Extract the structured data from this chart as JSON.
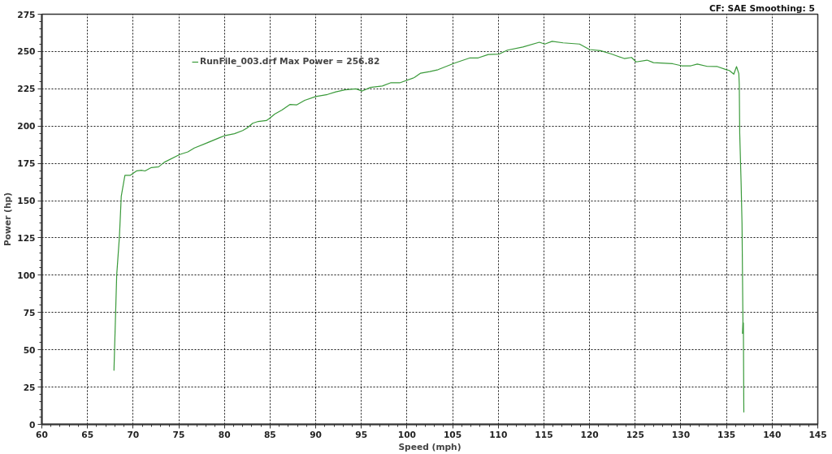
{
  "chart_data": {
    "type": "line",
    "xlabel": "Speed (mph)",
    "ylabel": "Power (hp)",
    "annotations": [
      "CF: SAE  Smoothing: 5"
    ],
    "xlim": [
      60,
      145
    ],
    "ylim": [
      0,
      275
    ],
    "xticks": [
      60,
      65,
      70,
      75,
      80,
      85,
      90,
      95,
      100,
      105,
      110,
      115,
      120,
      125,
      130,
      135,
      140,
      145
    ],
    "yticks": [
      0,
      25,
      50,
      75,
      100,
      125,
      150,
      175,
      200,
      225,
      250,
      275
    ],
    "grid": true,
    "legend": "top left",
    "series": [
      {
        "name": "RunFile_003.drf Max Power = 256.82",
        "color": "#3a9a3a",
        "x": [
          67.9,
          68.2,
          68.5,
          68.7,
          69.1,
          69.7,
          70.4,
          70.9,
          71.3,
          72.0,
          72.8,
          73.4,
          75.1,
          76.0,
          76.7,
          78.0,
          79.5,
          80.1,
          81.1,
          82.0,
          82.5,
          83.1,
          83.7,
          84.6,
          85.0,
          85.5,
          86.3,
          87.2,
          87.9,
          88.8,
          90.0,
          91.3,
          92.2,
          93.2,
          94.4,
          95.1,
          96.0,
          97.3,
          98.2,
          99.2,
          100.8,
          101.5,
          102.5,
          103.4,
          105.2,
          106.9,
          107.8,
          108.9,
          110.1,
          111.0,
          112.7,
          114.5,
          115.1,
          115.9,
          117.1,
          118.9,
          120.0,
          121.2,
          122.4,
          123.8,
          124.6,
          125.1,
          126.3,
          127.0,
          129.1,
          130.1,
          131.1,
          131.8,
          132.9,
          134.0,
          135.0,
          135.3,
          135.8,
          136.1,
          136.35,
          136.4,
          136.45,
          136.6,
          136.7,
          136.8,
          136.75,
          136.85,
          136.9
        ],
        "values": [
          36,
          100,
          126,
          153,
          167,
          167,
          170,
          170.4,
          169.9,
          172.2,
          172.7,
          175.7,
          180.9,
          182.7,
          185.3,
          188.5,
          192.3,
          193.7,
          194.9,
          197,
          198.8,
          201.9,
          203.1,
          203.7,
          205.4,
          208,
          210.7,
          214.5,
          214.2,
          217.3,
          219.8,
          221.2,
          222.9,
          224.3,
          225,
          223.5,
          225.9,
          226.9,
          229,
          229,
          232.5,
          235.5,
          236.5,
          237.8,
          242.2,
          245.7,
          245.7,
          248,
          248.3,
          250.9,
          253,
          256.2,
          255,
          256.8,
          255.8,
          255,
          251.3,
          250.6,
          248.3,
          245.3,
          246,
          243,
          244.2,
          242.5,
          241.8,
          240.4,
          240.4,
          241.6,
          240,
          239.9,
          237.8,
          237.3,
          234.8,
          239.9,
          235.2,
          228,
          195,
          162,
          135,
          69,
          61,
          68,
          8
        ]
      }
    ]
  }
}
